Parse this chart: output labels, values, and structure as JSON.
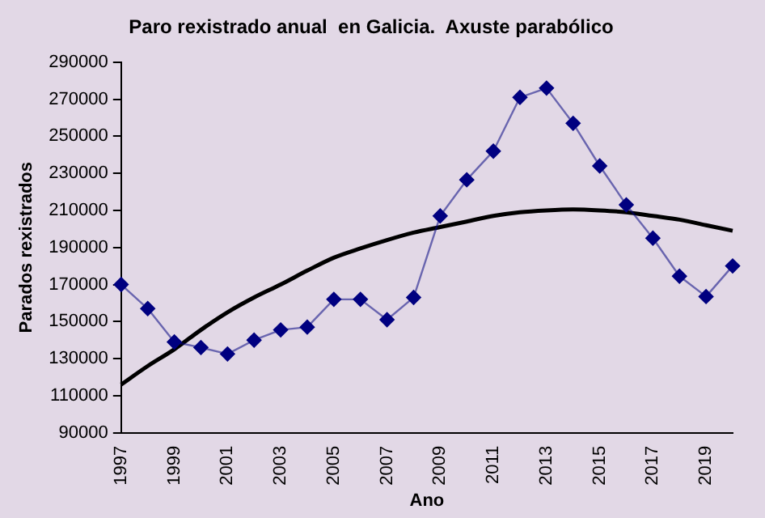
{
  "chart_data": {
    "type": "line",
    "title": "Paro rexistrado anual  en Galicia.  Axuste parabólico",
    "xlabel": "Ano",
    "ylabel": "Parados rexistrados",
    "categories": [
      "1997",
      null,
      "1999",
      null,
      "2001",
      null,
      "2003",
      null,
      "2005",
      null,
      "2007",
      null,
      "2009",
      null,
      "2011",
      null,
      "2013",
      null,
      "2015",
      null,
      "2017",
      null,
      "2019",
      null
    ],
    "series": [
      {
        "color": "#000080",
        "marker": "diamond",
        "values": [
          170000,
          157000,
          139000,
          136000,
          132500,
          140000,
          145500,
          147000,
          162000,
          162000,
          151000,
          163000,
          207000,
          226500,
          242000,
          271000,
          276000,
          257000,
          234000,
          213000,
          195000,
          174500,
          163500,
          180000
        ]
      },
      {
        "color": "#000000",
        "marker": "none",
        "values": [
          116000,
          126000,
          135000,
          145500,
          155000,
          163000,
          170000,
          177500,
          184500,
          189500,
          194000,
          198000,
          201000,
          204000,
          207000,
          209000,
          210000,
          210500,
          210000,
          209000,
          207000,
          205000,
          202000,
          199000
        ]
      }
    ],
    "ylim": [
      90000,
      290000
    ],
    "yticks": [
      90000,
      110000,
      130000,
      150000,
      170000,
      190000,
      210000,
      230000,
      250000,
      270000,
      290000
    ],
    "grid": false,
    "legend": false
  }
}
